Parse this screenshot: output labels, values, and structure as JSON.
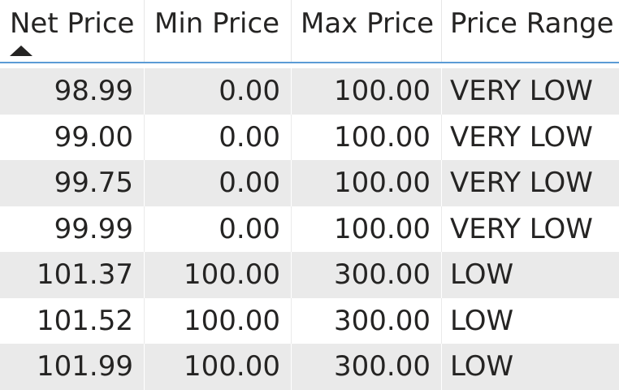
{
  "columns": [
    "Net Price",
    "Min Price",
    "Max Price",
    "Price Range"
  ],
  "sort": {
    "column": "Net Price",
    "direction": "ascending"
  },
  "rows": [
    [
      "98.99",
      "0.00",
      "100.00",
      "VERY LOW"
    ],
    [
      "99.00",
      "0.00",
      "100.00",
      "VERY LOW"
    ],
    [
      "99.75",
      "0.00",
      "100.00",
      "VERY LOW"
    ],
    [
      "99.99",
      "0.00",
      "100.00",
      "VERY LOW"
    ],
    [
      "101.37",
      "100.00",
      "300.00",
      "LOW"
    ],
    [
      "101.52",
      "100.00",
      "300.00",
      "LOW"
    ],
    [
      "101.99",
      "100.00",
      "300.00",
      "LOW"
    ]
  ],
  "colors": {
    "accent": "#5b9bd5",
    "row_band": "#eaeaea",
    "text": "#252423"
  }
}
